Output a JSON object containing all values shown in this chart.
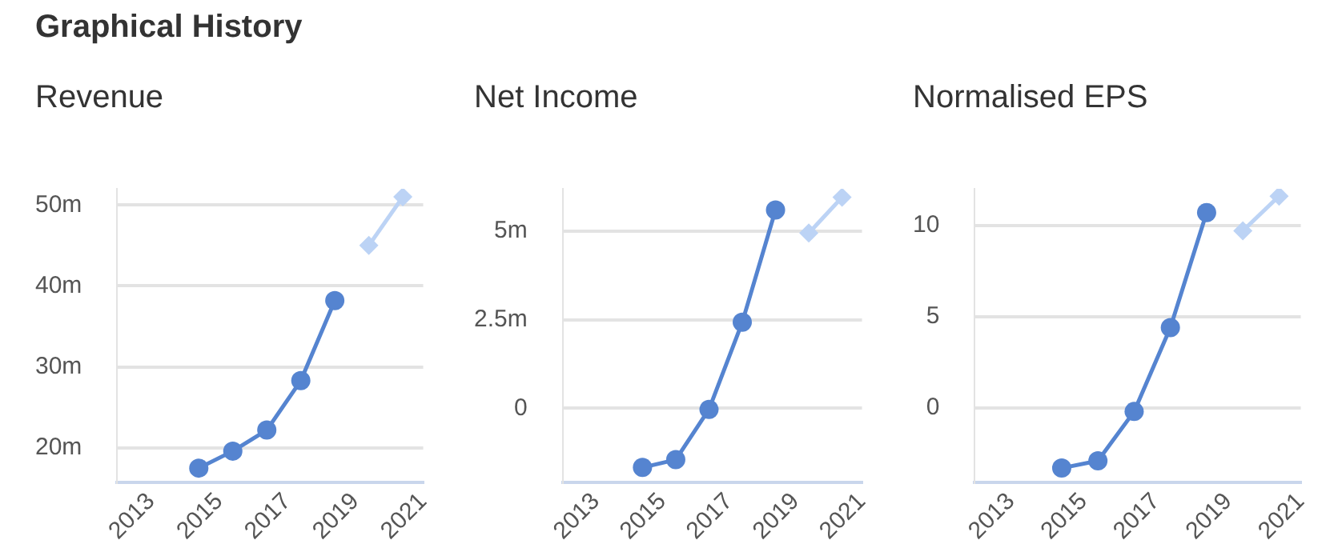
{
  "chart_data": [
    {
      "type": "other",
      "title": "Graphical History"
    },
    {
      "type": "line",
      "title": "Revenue",
      "xlim": [
        2012,
        2021
      ],
      "xticks": [
        2013,
        2015,
        2017,
        2019,
        2021
      ],
      "ylim": [
        15.7,
        52
      ],
      "yticks": [
        {
          "value": 20,
          "label": "20m"
        },
        {
          "value": 30,
          "label": "30m"
        },
        {
          "value": 40,
          "label": "40m"
        },
        {
          "value": 50,
          "label": "50m"
        }
      ],
      "grid": "y",
      "legend": false,
      "series": [
        {
          "color": "#5584d0",
          "marker": "circle",
          "x": [
            2014.4,
            2015.4,
            2016.4,
            2017.4,
            2018.4
          ],
          "values": [
            17.5,
            19.6,
            22.2,
            28.3,
            38.2
          ]
        },
        {
          "color": "#bcd3f5",
          "marker": "diamond",
          "x": [
            2019.4,
            2020.4
          ],
          "values": [
            45.0,
            51.0
          ]
        }
      ]
    },
    {
      "type": "line",
      "title": "Net Income",
      "xlim": [
        2012,
        2021
      ],
      "xticks": [
        2013,
        2015,
        2017,
        2019,
        2021
      ],
      "ylim": [
        -2.1,
        6.2
      ],
      "yticks": [
        0,
        {
          "value": 2.5,
          "label": "2.5m"
        },
        {
          "value": 5,
          "label": "5m"
        }
      ],
      "grid": "y",
      "legend": false,
      "series": [
        {
          "color": "#5584d0",
          "marker": "circle",
          "x": [
            2014.4,
            2015.4,
            2016.4,
            2017.4,
            2018.4
          ],
          "values": [
            -1.67,
            -1.45,
            -0.03,
            2.43,
            5.6
          ]
        },
        {
          "color": "#bcd3f5",
          "marker": "diamond",
          "x": [
            2019.4,
            2020.4
          ],
          "values": [
            4.95,
            5.96
          ]
        }
      ]
    },
    {
      "type": "line",
      "title": "Normalised EPS",
      "xlim": [
        2012,
        2021
      ],
      "xticks": [
        2013,
        2015,
        2017,
        2019,
        2021
      ],
      "ylim": [
        -4.1,
        12
      ],
      "yticks": [
        0,
        5,
        10
      ],
      "grid": "y",
      "legend": false,
      "series": [
        {
          "color": "#5584d0",
          "marker": "circle",
          "x": [
            2014.4,
            2015.4,
            2016.4,
            2017.4,
            2018.4
          ],
          "values": [
            -3.3,
            -2.9,
            -0.2,
            4.4,
            10.7
          ]
        },
        {
          "color": "#bcd3f5",
          "marker": "diamond",
          "x": [
            2019.4,
            2020.4
          ],
          "values": [
            9.7,
            11.6
          ]
        }
      ]
    }
  ]
}
